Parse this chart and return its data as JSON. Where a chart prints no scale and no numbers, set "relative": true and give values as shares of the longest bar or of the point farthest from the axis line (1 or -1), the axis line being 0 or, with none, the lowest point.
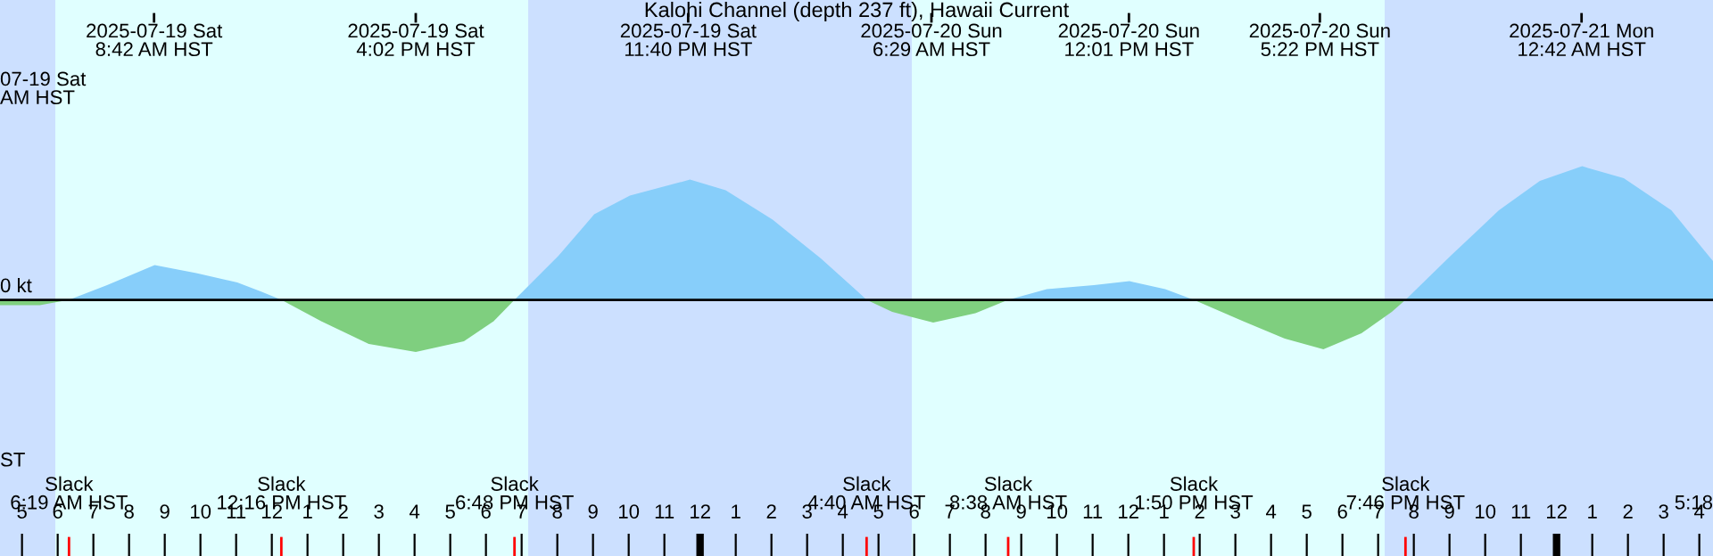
{
  "chart_data": {
    "type": "area",
    "title": "Kalohi Channel (depth 237 ft), Hawaii Current",
    "relative": true,
    "xlim": [
      "2025-07-19T04:23",
      "2025-07-21T04:23"
    ],
    "xticks": [
      {
        "value": "2025-07-19T05:00",
        "label": "5"
      },
      {
        "value": "2025-07-19T06:00",
        "label": "6"
      },
      {
        "value": "2025-07-19T07:00",
        "label": "7"
      },
      {
        "value": "2025-07-19T08:00",
        "label": "8"
      },
      {
        "value": "2025-07-19T09:00",
        "label": "9"
      },
      {
        "value": "2025-07-19T10:00",
        "label": "10"
      },
      {
        "value": "2025-07-19T11:00",
        "label": "11"
      },
      {
        "value": "2025-07-19T12:00",
        "label": "12"
      },
      {
        "value": "2025-07-19T13:00",
        "label": "1"
      },
      {
        "value": "2025-07-19T14:00",
        "label": "2"
      },
      {
        "value": "2025-07-19T15:00",
        "label": "3"
      },
      {
        "value": "2025-07-19T16:00",
        "label": "4"
      },
      {
        "value": "2025-07-19T17:00",
        "label": "5"
      },
      {
        "value": "2025-07-19T18:00",
        "label": "6"
      },
      {
        "value": "2025-07-19T19:00",
        "label": "7"
      },
      {
        "value": "2025-07-19T20:00",
        "label": "8"
      },
      {
        "value": "2025-07-19T21:00",
        "label": "9"
      },
      {
        "value": "2025-07-19T22:00",
        "label": "10"
      },
      {
        "value": "2025-07-19T23:00",
        "label": "11"
      },
      {
        "value": "2025-07-20T00:00",
        "label": "12"
      },
      {
        "value": "2025-07-20T01:00",
        "label": "1"
      },
      {
        "value": "2025-07-20T02:00",
        "label": "2"
      },
      {
        "value": "2025-07-20T03:00",
        "label": "3"
      },
      {
        "value": "2025-07-20T04:00",
        "label": "4"
      },
      {
        "value": "2025-07-20T05:00",
        "label": "5"
      },
      {
        "value": "2025-07-20T06:00",
        "label": "6"
      },
      {
        "value": "2025-07-20T07:00",
        "label": "7"
      },
      {
        "value": "2025-07-20T08:00",
        "label": "8"
      },
      {
        "value": "2025-07-20T09:00",
        "label": "9"
      },
      {
        "value": "2025-07-20T10:00",
        "label": "10"
      },
      {
        "value": "2025-07-20T11:00",
        "label": "11"
      },
      {
        "value": "2025-07-20T12:00",
        "label": "12"
      },
      {
        "value": "2025-07-20T13:00",
        "label": "1"
      },
      {
        "value": "2025-07-20T14:00",
        "label": "2"
      },
      {
        "value": "2025-07-20T15:00",
        "label": "3"
      },
      {
        "value": "2025-07-20T16:00",
        "label": "4"
      },
      {
        "value": "2025-07-20T17:00",
        "label": "5"
      },
      {
        "value": "2025-07-20T18:00",
        "label": "6"
      },
      {
        "value": "2025-07-20T19:00",
        "label": "7"
      },
      {
        "value": "2025-07-20T20:00",
        "label": "8"
      },
      {
        "value": "2025-07-20T21:00",
        "label": "9"
      },
      {
        "value": "2025-07-20T22:00",
        "label": "10"
      },
      {
        "value": "2025-07-20T23:00",
        "label": "11"
      },
      {
        "value": "2025-07-21T00:00",
        "label": "12"
      },
      {
        "value": "2025-07-21T01:00",
        "label": "1"
      },
      {
        "value": "2025-07-21T02:00",
        "label": "2"
      },
      {
        "value": "2025-07-21T03:00",
        "label": "3"
      },
      {
        "value": "2025-07-21T04:00",
        "label": "4"
      }
    ],
    "series": [
      {
        "color": "#7fcf7f",
        "x": [
          "2025-07-19T04:23",
          "2025-07-19T05:30",
          "2025-07-19T06:19"
        ],
        "values": [
          -0.04,
          -0.04,
          0
        ]
      },
      {
        "color": "#87cefa",
        "x": [
          "2025-07-19T06:19",
          "2025-07-19T07:23",
          "2025-07-19T08:43",
          "2025-07-19T09:53",
          "2025-07-19T11:02",
          "2025-07-19T11:43",
          "2025-07-19T12:16"
        ],
        "values": [
          0,
          0.11,
          0.26,
          0.2,
          0.13,
          0.06,
          0
        ]
      },
      {
        "color": "#7fcf7f",
        "x": [
          "2025-07-19T12:16",
          "2025-07-19T13:23",
          "2025-07-19T14:43",
          "2025-07-19T16:02",
          "2025-07-19T17:23",
          "2025-07-19T18:13",
          "2025-07-19T18:48"
        ],
        "values": [
          0,
          -0.16,
          -0.33,
          -0.39,
          -0.31,
          -0.16,
          0
        ]
      },
      {
        "color": "#87cefa",
        "x": [
          "2025-07-19T18:48",
          "2025-07-19T20:02",
          "2025-07-19T21:02",
          "2025-07-19T22:02",
          "2025-07-19T23:43",
          "2025-07-20T00:43",
          "2025-07-20T02:02",
          "2025-07-20T03:23",
          "2025-07-20T04:23",
          "2025-07-20T04:40"
        ],
        "values": [
          0,
          0.33,
          0.64,
          0.78,
          0.9,
          0.82,
          0.6,
          0.31,
          0.07,
          0
        ]
      },
      {
        "color": "#7fcf7f",
        "x": [
          "2025-07-20T04:40",
          "2025-07-20T05:23",
          "2025-07-20T06:32",
          "2025-07-20T07:43",
          "2025-07-20T08:38"
        ],
        "values": [
          0,
          -0.09,
          -0.17,
          -0.1,
          0
        ]
      },
      {
        "color": "#87cefa",
        "x": [
          "2025-07-20T08:38",
          "2025-07-20T09:43",
          "2025-07-20T11:02",
          "2025-07-20T12:02",
          "2025-07-20T13:02",
          "2025-07-20T13:50"
        ],
        "values": [
          0,
          0.08,
          0.11,
          0.14,
          0.08,
          0
        ]
      },
      {
        "color": "#7fcf7f",
        "x": [
          "2025-07-20T13:50",
          "2025-07-20T15:13",
          "2025-07-20T16:23",
          "2025-07-20T17:28",
          "2025-07-20T18:32",
          "2025-07-20T19:23",
          "2025-07-20T19:46"
        ],
        "values": [
          0,
          -0.16,
          -0.29,
          -0.37,
          -0.25,
          -0.09,
          0
        ]
      },
      {
        "color": "#87cefa",
        "x": [
          "2025-07-20T19:46",
          "2025-07-20T21:02",
          "2025-07-20T22:23",
          "2025-07-20T23:32",
          "2025-07-21T00:43",
          "2025-07-21T01:53",
          "2025-07-21T03:13",
          "2025-07-21T04:23"
        ],
        "values": [
          0,
          0.33,
          0.67,
          0.89,
          1,
          0.91,
          0.67,
          0.29
        ]
      }
    ],
    "bands": [
      {
        "axis": "x",
        "from": "2025-07-19T04:23",
        "to": "2025-07-19T05:56",
        "color": "#cce0ff"
      },
      {
        "axis": "x",
        "from": "2025-07-19T05:56",
        "to": "2025-07-19T19:11",
        "color": "#e0ffff"
      },
      {
        "axis": "x",
        "from": "2025-07-19T19:11",
        "to": "2025-07-20T05:56",
        "color": "#cce0ff"
      },
      {
        "axis": "x",
        "from": "2025-07-20T05:56",
        "to": "2025-07-20T19:11",
        "color": "#e0ffff"
      },
      {
        "axis": "x",
        "from": "2025-07-20T19:11",
        "to": "2025-07-21T04:23",
        "color": "#cce0ff"
      }
    ],
    "ref_lines": [
      {
        "axis": "y",
        "value": 0,
        "label": "0 kt",
        "color": "#000000"
      },
      {
        "axis": "x",
        "value": "2025-07-19T06:19",
        "label": "Slack\n6:19 AM HST",
        "color": "#ff0000"
      },
      {
        "axis": "x",
        "value": "2025-07-19T12:16",
        "label": "Slack\n12:16 PM HST",
        "color": "#ff0000"
      },
      {
        "axis": "x",
        "value": "2025-07-19T18:48",
        "label": "Slack\n6:48 PM HST",
        "color": "#ff0000"
      },
      {
        "axis": "x",
        "value": "2025-07-20T04:40",
        "label": "Slack\n4:40 AM HST",
        "color": "#ff0000"
      },
      {
        "axis": "x",
        "value": "2025-07-20T08:38",
        "label": "Slack\n8:38 AM HST",
        "color": "#ff0000"
      },
      {
        "axis": "x",
        "value": "2025-07-20T13:50",
        "label": "Slack\n1:50 PM HST",
        "color": "#ff0000"
      },
      {
        "axis": "x",
        "value": "2025-07-20T19:46",
        "label": "Slack\n7:46 PM HST",
        "color": "#ff0000"
      },
      {
        "axis": "x",
        "value": "2025-07-19T08:42",
        "label": "2025-07-19 Sat\n8:42 AM HST",
        "color": "#000000"
      },
      {
        "axis": "x",
        "value": "2025-07-19T16:02",
        "label": "2025-07-19 Sat\n4:02 PM HST",
        "color": "#000000"
      },
      {
        "axis": "x",
        "value": "2025-07-19T23:40",
        "label": "2025-07-19 Sat\n11:40 PM HST",
        "color": "#000000"
      },
      {
        "axis": "x",
        "value": "2025-07-20T06:29",
        "label": "2025-07-20 Sun\n6:29 AM HST",
        "color": "#000000"
      },
      {
        "axis": "x",
        "value": "2025-07-20T12:01",
        "label": "2025-07-20 Sun\n12:01 PM HST",
        "color": "#000000"
      },
      {
        "axis": "x",
        "value": "2025-07-20T17:22",
        "label": "2025-07-20 Sun\n5:22 PM HST",
        "color": "#000000"
      },
      {
        "axis": "x",
        "value": "2025-07-21T00:42",
        "label": "2025-07-21 Mon\n12:42 AM HST",
        "color": "#000000"
      }
    ],
    "annotations": [
      "07-19 Sat\nAM HST",
      "ST",
      "5:18"
    ],
    "grid": false
  }
}
